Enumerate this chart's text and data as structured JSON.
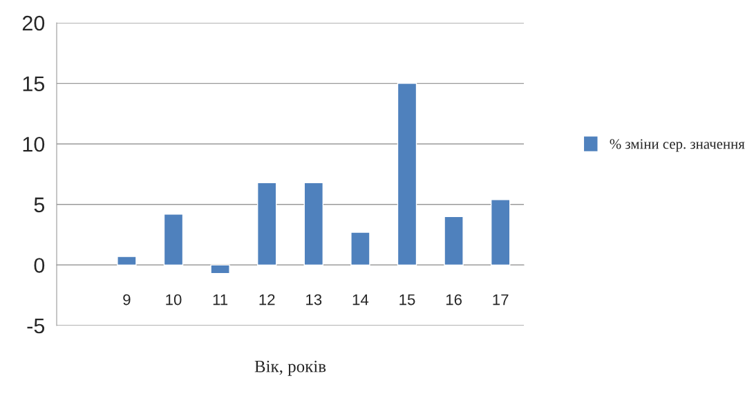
{
  "chart_data": {
    "type": "bar",
    "xlabel": "Вік, років",
    "categories": [
      null,
      "9",
      "10",
      "11",
      "12",
      "13",
      "14",
      "15",
      "16",
      "17"
    ],
    "series": [
      {
        "name": "% зміни сер. значення",
        "color": "#4f81bd",
        "values": [
          null,
          0.7,
          4.2,
          -0.7,
          6.8,
          6.8,
          2.7,
          15,
          4.0,
          5.4
        ]
      }
    ],
    "ylim": [
      -5,
      20
    ],
    "yticks": [
      {
        "value": -5,
        "label": "-5"
      },
      0,
      5,
      10,
      15,
      20
    ],
    "grid": "y",
    "legend": "right"
  }
}
